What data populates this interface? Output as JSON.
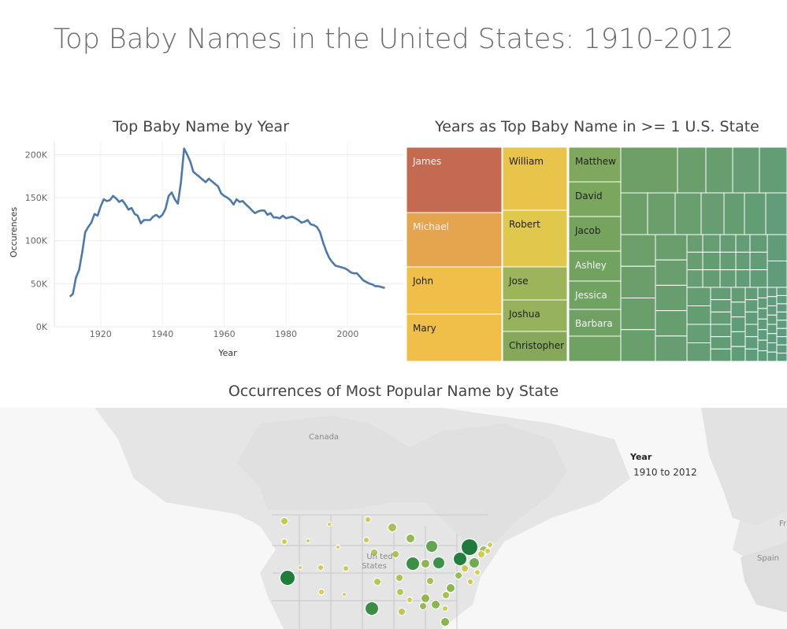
{
  "dashboard": {
    "title": "Top Baby Names in the United States: 1910-2012"
  },
  "chart_data": [
    {
      "type": "line",
      "title": "Top Baby Name by Year",
      "xlabel": "Year",
      "ylabel": "Occurences",
      "xlim": [
        1905,
        2018
      ],
      "ylim": [
        0,
        215000
      ],
      "x_ticks": [
        1920,
        1940,
        1960,
        1980,
        2000
      ],
      "y_ticks": [
        0,
        50000,
        100000,
        150000,
        200000
      ],
      "y_tick_labels": [
        "0K",
        "50K",
        "100K",
        "150K",
        "200K"
      ],
      "grid": true,
      "color": "#4e79a7",
      "series": [
        {
          "x": [
            1910,
            1911,
            1912,
            1913,
            1914,
            1915,
            1916,
            1917,
            1918,
            1919,
            1920,
            1921,
            1922,
            1923,
            1924,
            1925,
            1926,
            1927,
            1928,
            1929,
            1930,
            1931,
            1932,
            1933,
            1934,
            1935,
            1936,
            1937,
            1938,
            1939,
            1940,
            1941,
            1942,
            1943,
            1944,
            1945,
            1946,
            1947,
            1948,
            1949,
            1950,
            1951,
            1952,
            1953,
            1954,
            1955,
            1956,
            1957,
            1958,
            1959,
            1960,
            1961,
            1962,
            1963,
            1964,
            1965,
            1966,
            1967,
            1968,
            1969,
            1970,
            1971,
            1972,
            1973,
            1974,
            1975,
            1976,
            1977,
            1978,
            1979,
            1980,
            1981,
            1982,
            1983,
            1984,
            1985,
            1986,
            1987,
            1988,
            1989,
            1990,
            1991,
            1992,
            1993,
            1994,
            1995,
            1996,
            1997,
            1998,
            1999,
            2000,
            2001,
            2002,
            2003,
            2004,
            2005,
            2006,
            2007,
            2008,
            2009,
            2010,
            2011,
            2012
          ],
          "y": [
            35000,
            38000,
            57000,
            66000,
            86000,
            110000,
            116000,
            121000,
            131000,
            129000,
            140000,
            148000,
            146000,
            147000,
            152000,
            149000,
            145000,
            147000,
            142000,
            136000,
            138000,
            131000,
            129000,
            120000,
            124000,
            124000,
            124000,
            128000,
            130000,
            127000,
            130000,
            137000,
            152000,
            156000,
            148000,
            143000,
            168000,
            207000,
            200000,
            192000,
            180000,
            177000,
            174000,
            171000,
            168000,
            172000,
            169000,
            166000,
            163000,
            155000,
            152000,
            150000,
            147000,
            142000,
            148000,
            145000,
            146000,
            142000,
            139000,
            135000,
            132000,
            134000,
            135000,
            135000,
            130000,
            132000,
            127000,
            127000,
            126000,
            129000,
            126000,
            127000,
            128000,
            126000,
            124000,
            121000,
            122000,
            124000,
            119000,
            118000,
            116000,
            110000,
            98000,
            88000,
            80000,
            75000,
            71000,
            70000,
            69000,
            68000,
            66000,
            63000,
            62000,
            62000,
            58000,
            54000,
            52000,
            50000,
            49000,
            47000,
            47000,
            46000,
            45000
          ]
        }
      ]
    },
    {
      "type": "treemap",
      "title": "Years as Top Baby Name in >= 1 U.S. State",
      "labeled_items": [
        {
          "name": "James",
          "color": "#c46a50"
        },
        {
          "name": "Michael",
          "color": "#e5a54e"
        },
        {
          "name": "John",
          "color": "#efbf4a"
        },
        {
          "name": "Mary",
          "color": "#efbf4a"
        },
        {
          "name": "William",
          "color": "#e8c44b"
        },
        {
          "name": "Robert",
          "color": "#dfc84c"
        },
        {
          "name": "Jose",
          "color": "#9db55a"
        },
        {
          "name": "Joshua",
          "color": "#95b15b"
        },
        {
          "name": "Christopher",
          "color": "#86a85a"
        },
        {
          "name": "Matthew",
          "color": "#7fa75d"
        },
        {
          "name": "David",
          "color": "#7ba65e"
        },
        {
          "name": "Jacob",
          "color": "#76a45e"
        },
        {
          "name": "Ashley",
          "color": "#72a260"
        },
        {
          "name": "Jessica",
          "color": "#70a262"
        },
        {
          "name": "Barbara",
          "color": "#6fa164"
        }
      ],
      "unlabeled_color_range": [
        "#6e9f66",
        "#5c9b80"
      ]
    },
    {
      "type": "map",
      "title": "Occurrences of Most Popular Name by State",
      "legend": {
        "title": "Year",
        "value": "1910 to 2012"
      },
      "places": [
        "Canada",
        "United States",
        "Spain",
        "Fr"
      ],
      "color_scale": [
        "#d9cc5a",
        "#1e7a3c"
      ]
    }
  ]
}
